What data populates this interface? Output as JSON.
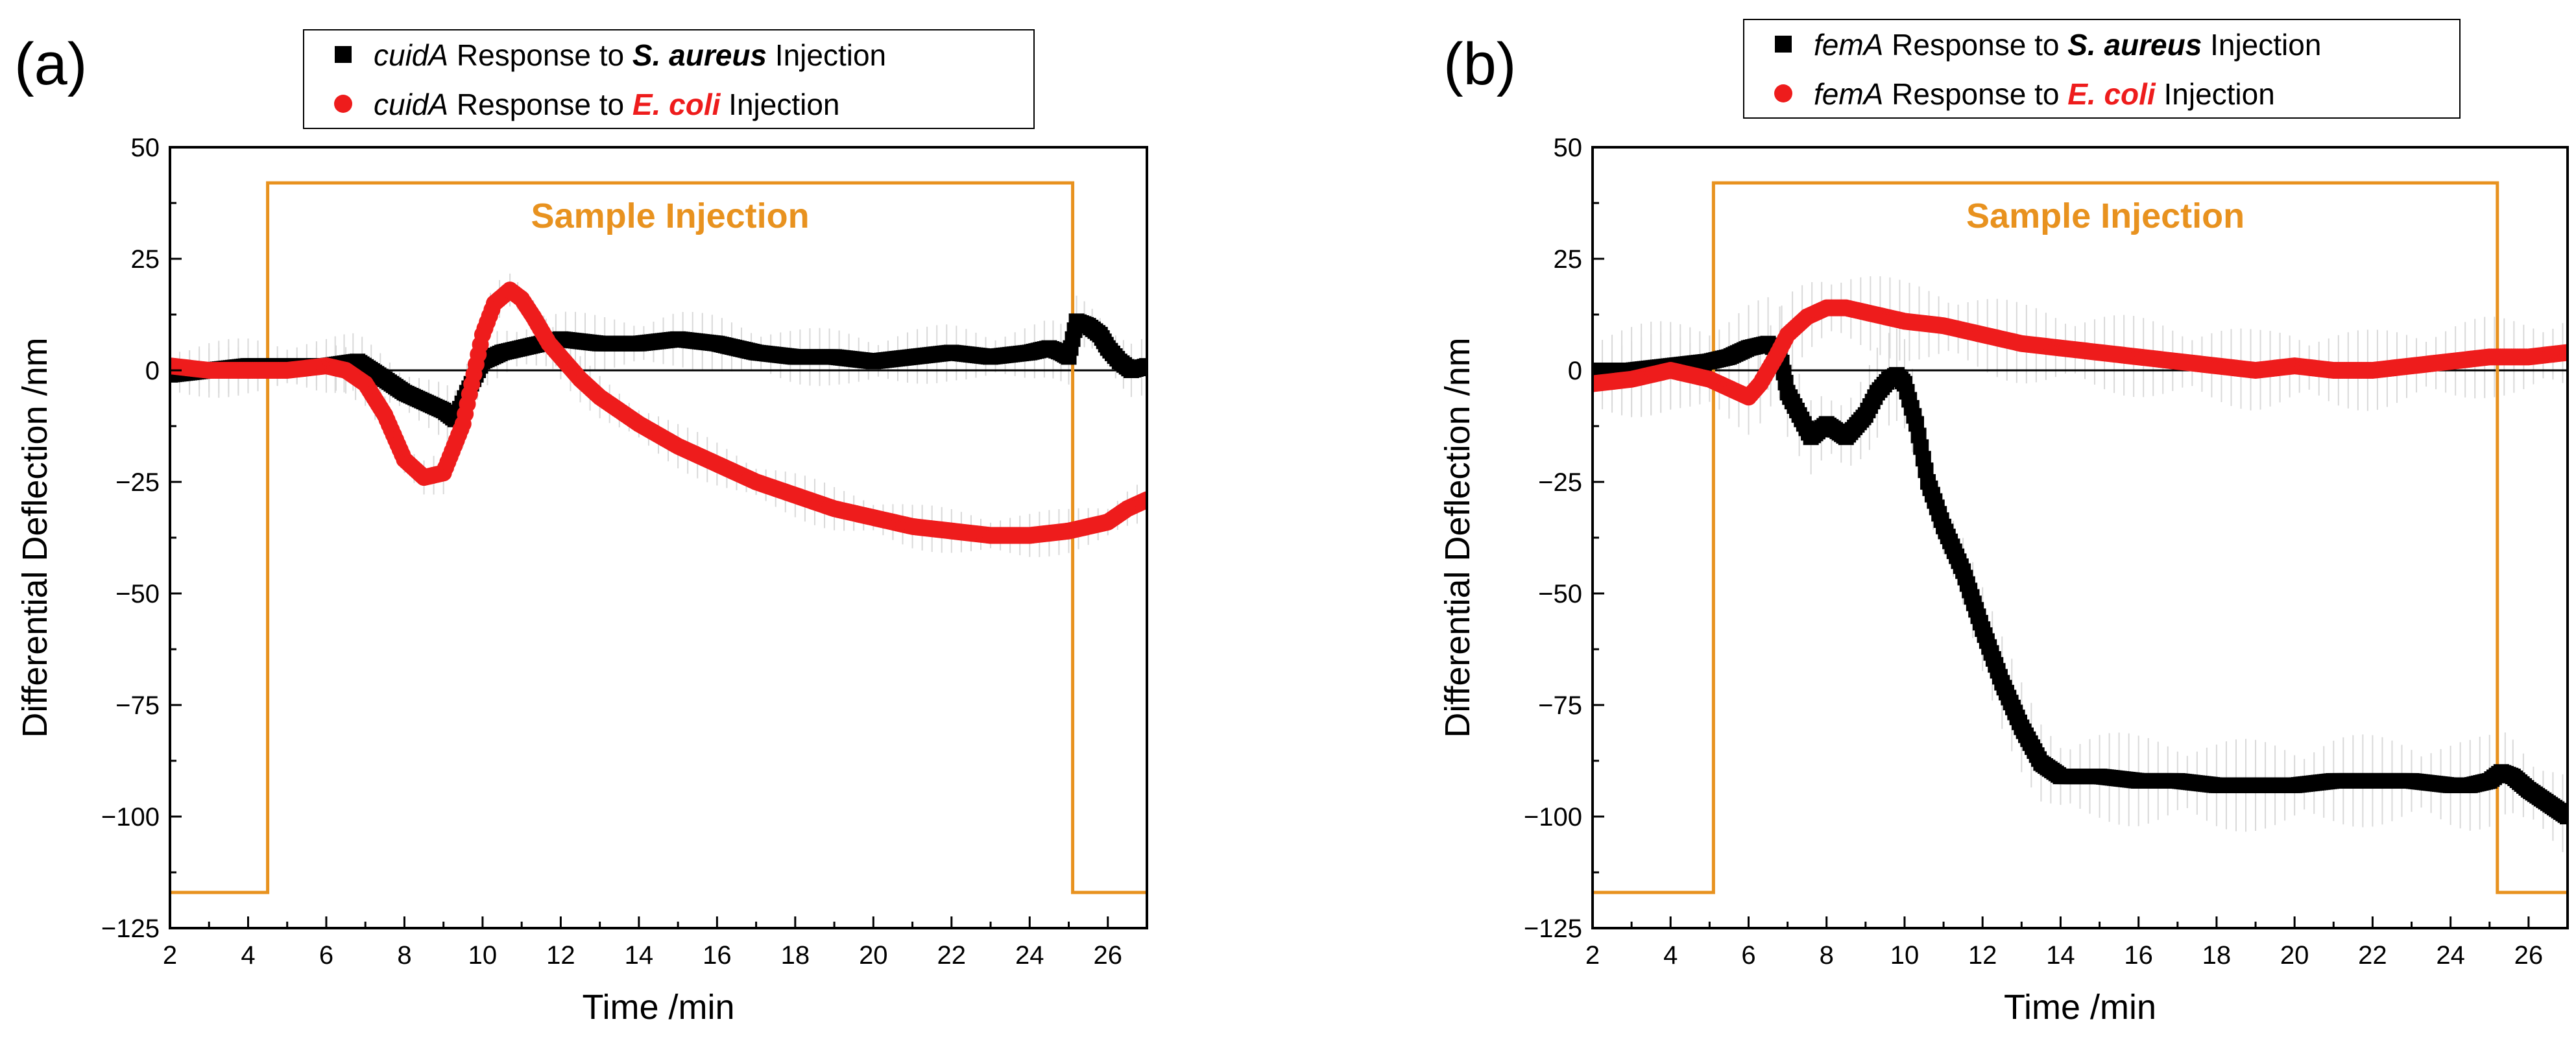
{
  "chart_data": [
    {
      "type": "scatter",
      "panel_label": "(a)",
      "xlabel": "Time /min",
      "ylabel": "Differential Deflection /nm",
      "xlim": [
        2,
        27
      ],
      "ylim": [
        -125,
        50
      ],
      "xticks": [
        2,
        4,
        6,
        8,
        10,
        12,
        14,
        16,
        18,
        20,
        22,
        24,
        26
      ],
      "yticks": [
        50,
        25,
        0,
        -25,
        -50,
        -75,
        -100,
        -125
      ],
      "xtick_labels": [
        "2",
        "4",
        "6",
        "8",
        "10",
        "12",
        "14",
        "16",
        "18",
        "20",
        "22",
        "24",
        "26"
      ],
      "ytick_labels": [
        "50",
        "25",
        "0",
        "−25",
        "−50",
        "−75",
        "−100",
        "−125"
      ],
      "zero_line": true,
      "legend": {
        "position": "top",
        "entries": [
          {
            "gene": "cuidA",
            "mid": " Response to ",
            "organism": "S. aureus",
            "tail": " Injection",
            "color": "#000000",
            "marker": "square"
          },
          {
            "gene": "cuidA",
            "mid": " Response to ",
            "organism": "E. coli",
            "tail": " Injection",
            "color": "#ee1c1c",
            "marker": "circle"
          }
        ]
      },
      "annotation": {
        "text": "Sample Injection",
        "color": "#e8921f"
      },
      "injection_window": {
        "low": -117,
        "high": 42,
        "start": 4.5,
        "end": 25.1,
        "color": "#e8921f"
      },
      "series": [
        {
          "name": "cuidA Response to S. aureus Injection",
          "color": "#000000",
          "marker": "square",
          "error": 5,
          "x": [
            2,
            3,
            4,
            5,
            6,
            6.8,
            7.5,
            8,
            8.5,
            9,
            9.3,
            9.6,
            10,
            10.5,
            11,
            11.5,
            12,
            13,
            14,
            15,
            16,
            17,
            18,
            19,
            20,
            21,
            22,
            23,
            24,
            24.5,
            24.8,
            25,
            25.2,
            25.5,
            25.8,
            26,
            26.3,
            26.6,
            27
          ],
          "y": [
            -1,
            0,
            1,
            1,
            1,
            2,
            -2,
            -5,
            -7,
            -9,
            -11,
            -5,
            2,
            4,
            5,
            6,
            7,
            6,
            6,
            7,
            6,
            4,
            3,
            3,
            2,
            3,
            4,
            3,
            4,
            5,
            4,
            3,
            11,
            10,
            8,
            5,
            2,
            0,
            1
          ]
        },
        {
          "name": "cuidA Response to E. coli Injection",
          "color": "#ee1c1c",
          "marker": "circle",
          "error": 4,
          "x": [
            2,
            3,
            4,
            5,
            6,
            6.5,
            7,
            7.5,
            8,
            8.5,
            9,
            9.5,
            10,
            10.3,
            10.7,
            11,
            11.3,
            11.7,
            12,
            12.5,
            13,
            14,
            15,
            16,
            17,
            18,
            19,
            20,
            21,
            22,
            23,
            24,
            25,
            26,
            26.5,
            27
          ],
          "y": [
            1,
            0,
            0,
            0,
            1,
            0,
            -3,
            -10,
            -20,
            -24,
            -23,
            -12,
            8,
            15,
            18,
            16,
            12,
            6,
            3,
            -2,
            -6,
            -12,
            -17,
            -21,
            -25,
            -28,
            -31,
            -33,
            -35,
            -36,
            -37,
            -37,
            -36,
            -34,
            -31,
            -29
          ]
        }
      ]
    },
    {
      "type": "scatter",
      "panel_label": "(b)",
      "xlabel": "Time /min",
      "ylabel": "Differential Deflection /nm",
      "xlim": [
        2,
        27
      ],
      "ylim": [
        -125,
        50
      ],
      "xticks": [
        2,
        4,
        6,
        8,
        10,
        12,
        14,
        16,
        18,
        20,
        22,
        24,
        26
      ],
      "yticks": [
        50,
        25,
        0,
        -25,
        -50,
        -75,
        -100,
        -125
      ],
      "xtick_labels": [
        "2",
        "4",
        "6",
        "8",
        "10",
        "12",
        "14",
        "16",
        "18",
        "20",
        "22",
        "24",
        "26"
      ],
      "ytick_labels": [
        "50",
        "25",
        "0",
        "−25",
        "−50",
        "−75",
        "−100",
        "−125"
      ],
      "zero_line": true,
      "legend": {
        "position": "top",
        "entries": [
          {
            "gene": "femA",
            "mid": " Response to ",
            "organism": "S. aureus",
            "tail": " Injection",
            "color": "#000000",
            "marker": "square"
          },
          {
            "gene": "femA",
            "mid": " Response to ",
            "organism": "E. coli",
            "tail": " Injection",
            "color": "#ee1c1c",
            "marker": "circle"
          }
        ]
      },
      "annotation": {
        "text": "Sample Injection",
        "color": "#e8921f"
      },
      "injection_window": {
        "low": -117,
        "high": 42,
        "start": 5.1,
        "end": 25.2,
        "color": "#e8921f"
      },
      "series": [
        {
          "name": "femA Response to S. aureus Injection",
          "color": "#000000",
          "marker": "square",
          "error": 8,
          "x": [
            2,
            3,
            4,
            5,
            5.5,
            6,
            6.5,
            6.8,
            7,
            7.3,
            7.6,
            8,
            8.5,
            9,
            9.3,
            9.6,
            9.8,
            10,
            10.3,
            10.6,
            11,
            11.5,
            12,
            12.5,
            13,
            13.5,
            14,
            15,
            16,
            17,
            18,
            19,
            20,
            21,
            22,
            23,
            24,
            24.5,
            25,
            25.3,
            25.6,
            26,
            26.5,
            27
          ],
          "y": [
            0,
            0,
            1,
            2,
            3,
            5,
            6,
            4,
            -5,
            -10,
            -15,
            -12,
            -15,
            -10,
            -5,
            -2,
            -1,
            -3,
            -12,
            -25,
            -35,
            -45,
            -58,
            -70,
            -80,
            -88,
            -91,
            -91,
            -92,
            -92,
            -93,
            -93,
            -93,
            -92,
            -92,
            -92,
            -93,
            -93,
            -92,
            -90,
            -91,
            -94,
            -97,
            -100
          ]
        },
        {
          "name": "femA Response to E. coli Injection",
          "color": "#ee1c1c",
          "marker": "circle",
          "error": 7,
          "x": [
            2,
            3,
            4,
            5,
            5.5,
            6,
            6.3,
            6.7,
            7,
            7.5,
            8,
            8.5,
            9,
            9.5,
            10,
            11,
            12,
            13,
            14,
            15,
            16,
            17,
            18,
            19,
            20,
            21,
            22,
            23,
            24,
            25,
            26,
            27
          ],
          "y": [
            -3,
            -2,
            0,
            -2,
            -4,
            -6,
            -3,
            3,
            8,
            12,
            14,
            14,
            13,
            12,
            11,
            10,
            8,
            6,
            5,
            4,
            3,
            2,
            1,
            0,
            1,
            0,
            0,
            1,
            2,
            3,
            3,
            4
          ]
        }
      ]
    }
  ]
}
